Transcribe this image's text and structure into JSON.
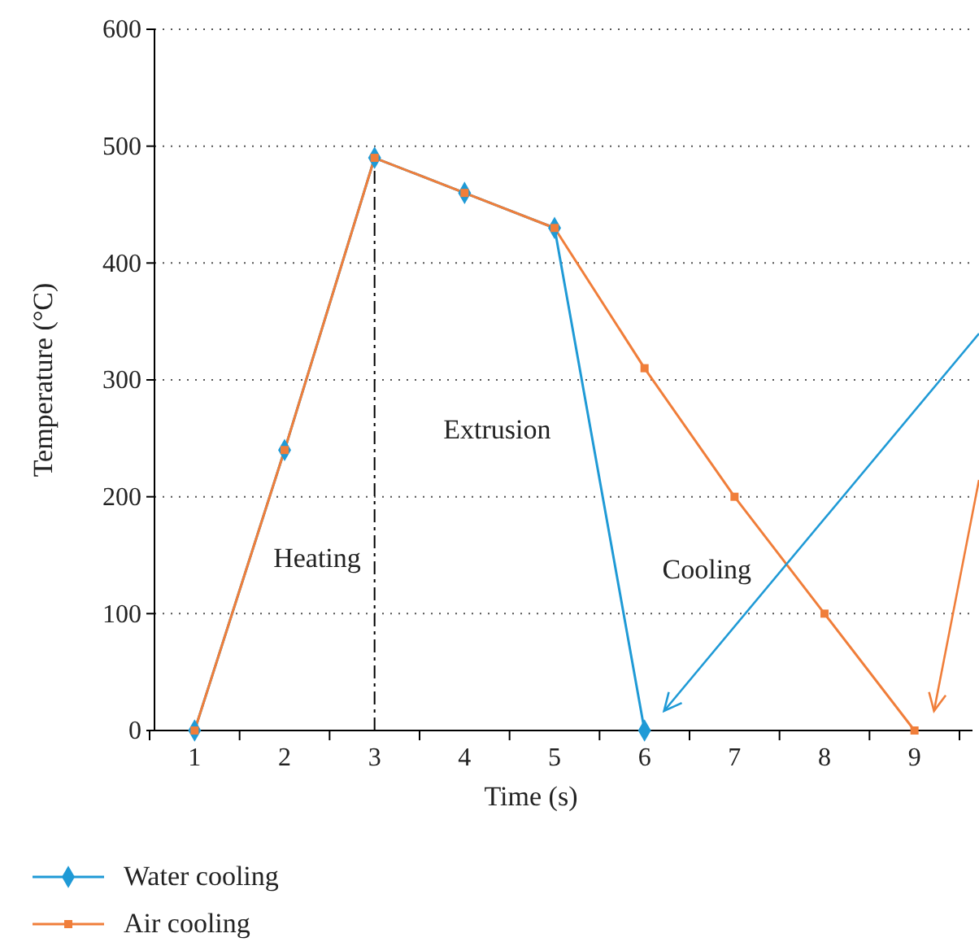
{
  "chart_data": {
    "type": "line",
    "xlabel": "Time (s)",
    "ylabel": "Temperature (°C)",
    "categories": [
      "1",
      "2",
      "3",
      "4",
      "5",
      "6",
      "7",
      "8",
      "9"
    ],
    "ylim": [
      0,
      600
    ],
    "yticks": [
      0,
      100,
      200,
      300,
      400,
      500,
      600
    ],
    "grid": "y",
    "legend": "bottom",
    "series": [
      {
        "name": "Water cooling",
        "color": "#1f9ad6",
        "marker": "diamond",
        "values": [
          0,
          240,
          490,
          460,
          430,
          0,
          null,
          null,
          null
        ]
      },
      {
        "name": "Air cooling",
        "color": "#f07e3a",
        "marker": "square",
        "values": [
          0,
          240,
          490,
          460,
          430,
          310,
          200,
          100,
          0
        ]
      }
    ],
    "ref_lines": [
      {
        "axis": "x",
        "value": "3",
        "line_style": "dashdot",
        "color": "#000000"
      }
    ],
    "annotations": [
      "Heating",
      "Extrusion",
      "Cooling"
    ]
  }
}
